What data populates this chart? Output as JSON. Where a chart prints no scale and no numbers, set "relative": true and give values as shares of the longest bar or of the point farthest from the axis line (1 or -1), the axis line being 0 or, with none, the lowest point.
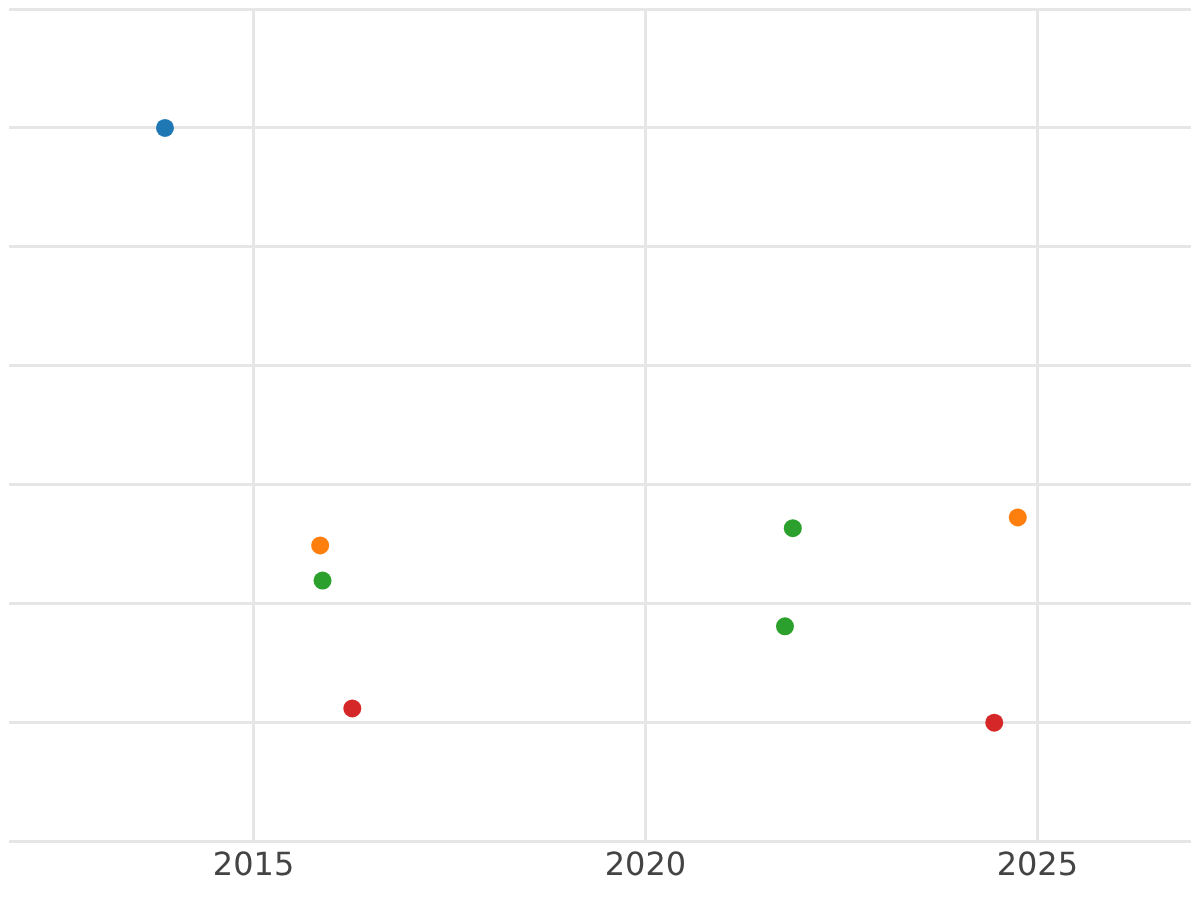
{
  "chart_data": {
    "type": "scatter",
    "relative": true,
    "grid": true,
    "tick_labels": "x",
    "marker": "circle",
    "legend": false,
    "xlim": [
      2011.88,
      2026.96
    ],
    "xticks": [
      2015,
      2020,
      2025
    ],
    "series": [
      {
        "color": "#1f77b4",
        "x": [
          2013.87
        ],
        "values": [
          1
        ]
      },
      {
        "color": "#ff7f0e",
        "x": [
          2015.85,
          2024.75
        ],
        "values": [
          0.298,
          0.345
        ]
      },
      {
        "color": "#2ca02c",
        "x": [
          2015.88,
          2021.88,
          2021.78
        ],
        "values": [
          0.239,
          0.327,
          0.162
        ]
      },
      {
        "color": "#d62728",
        "x": [
          2016.26,
          2024.45
        ],
        "values": [
          0.024,
          0
        ]
      }
    ]
  }
}
